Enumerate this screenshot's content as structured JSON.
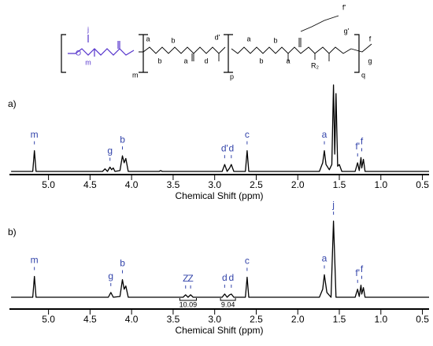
{
  "structure": {
    "labels": [
      "j",
      "m",
      "a",
      "b",
      "b",
      "a",
      "d'",
      "d",
      "a",
      "b",
      "b",
      "a",
      "f'",
      "g'",
      "R₂",
      "f",
      "g"
    ],
    "subscripts": [
      "m",
      "p",
      "q"
    ]
  },
  "chart_data": [
    {
      "type": "line",
      "title": "a)",
      "x_label": "Chemical Shift (ppm)",
      "color": "#000000",
      "label_color": "#3344aa",
      "xlim": [
        5.47,
        0.42
      ],
      "ylim": [
        0,
        100
      ],
      "xticks": [
        {
          "value": 5,
          "label": "5.0"
        },
        4.5,
        {
          "value": 4,
          "label": "4.0"
        },
        3.5,
        {
          "value": 3,
          "label": "3.0"
        },
        2.5,
        {
          "value": 2,
          "label": "2.0"
        },
        1.5,
        {
          "value": 1,
          "label": "1.0"
        },
        0.5
      ],
      "x": [
        5.45,
        5.19,
        5.17,
        5.15,
        4.35,
        4.32,
        4.29,
        4.26,
        4.24,
        4.22,
        4.2,
        4.14,
        4.11,
        4.09,
        4.07,
        4.04,
        3.67,
        3.65,
        3.63,
        2.91,
        2.88,
        2.85,
        2.82,
        2.8,
        2.77,
        2.63,
        2.61,
        2.59,
        1.74,
        1.7,
        1.68,
        1.66,
        1.62,
        1.59,
        1.57,
        1.555,
        1.54,
        1.52,
        1.5,
        1.47,
        1.31,
        1.28,
        1.26,
        1.24,
        1.23,
        1.21,
        1.19,
        0.42
      ],
      "values": [
        0,
        0,
        24,
        0,
        0,
        3,
        0,
        5,
        2,
        4,
        0,
        1,
        18,
        10,
        15,
        0,
        0,
        1,
        0,
        0,
        8,
        0,
        4,
        8,
        0,
        0,
        24,
        0,
        0,
        10,
        24,
        8,
        2,
        8,
        100,
        20,
        90,
        6,
        8,
        0,
        0,
        10,
        1,
        16,
        4,
        14,
        0,
        0
      ],
      "annotations": [
        {
          "text": "m",
          "x": 5.17
        },
        {
          "text": "g",
          "x": 4.26
        },
        {
          "text": "b",
          "x": 4.11
        },
        {
          "text": "d'",
          "x": 2.88
        },
        {
          "text": "d",
          "x": 2.8
        },
        {
          "text": "c",
          "x": 2.61
        },
        {
          "text": "a",
          "x": 1.68
        },
        {
          "text": "f'",
          "x": 1.28
        },
        {
          "text": "f",
          "x": 1.23
        }
      ]
    },
    {
      "type": "line",
      "title": "b)",
      "x_label": "Chemical Shift (ppm)",
      "color": "#000000",
      "label_color": "#3344aa",
      "xlim": [
        5.47,
        0.42
      ],
      "ylim": [
        0,
        100
      ],
      "xticks": [
        {
          "value": 5,
          "label": "5.0"
        },
        4.5,
        {
          "value": 4,
          "label": "4.0"
        },
        3.5,
        {
          "value": 3,
          "label": "3.0"
        },
        2.5,
        {
          "value": 2,
          "label": "2.0"
        },
        1.5,
        {
          "value": 1,
          "label": "1.0"
        },
        0.5
      ],
      "x": [
        5.45,
        5.19,
        5.17,
        5.15,
        4.28,
        4.25,
        4.22,
        4.14,
        4.11,
        4.09,
        4.07,
        4.04,
        3.38,
        3.35,
        3.32,
        3.29,
        3.26,
        2.91,
        2.88,
        2.85,
        2.82,
        2.8,
        2.77,
        2.63,
        2.61,
        2.59,
        1.74,
        1.7,
        1.68,
        1.65,
        1.6,
        1.57,
        1.54,
        1.31,
        1.28,
        1.26,
        1.24,
        1.23,
        1.21,
        1.19,
        0.42
      ],
      "values": [
        0,
        0,
        26,
        0,
        0,
        6,
        0,
        1,
        22,
        10,
        14,
        0,
        0,
        3,
        0,
        3,
        0,
        0,
        4,
        0,
        3,
        4,
        0,
        0,
        25,
        0,
        0,
        10,
        28,
        6,
        0,
        95,
        0,
        0,
        10,
        1,
        15,
        4,
        12,
        0,
        0
      ],
      "annotations": [
        {
          "text": "m",
          "x": 5.17
        },
        {
          "text": "g",
          "x": 4.25
        },
        {
          "text": "b",
          "x": 4.11
        },
        {
          "text": "Z",
          "x": 3.35
        },
        {
          "text": "Z",
          "x": 3.29
        },
        {
          "text": "d",
          "x": 2.88
        },
        {
          "text": "d",
          "x": 2.8
        },
        {
          "text": "c",
          "x": 2.61
        },
        {
          "text": "a",
          "x": 1.68
        },
        {
          "text": "j",
          "x": 1.57
        },
        {
          "text": "f'",
          "x": 1.28
        },
        {
          "text": "f",
          "x": 1.23
        }
      ],
      "integrals": [
        {
          "label": "10.09",
          "range": [
            3.42,
            3.22
          ]
        },
        {
          "label": "9.04",
          "range": [
            2.93,
            2.75
          ]
        }
      ]
    }
  ]
}
